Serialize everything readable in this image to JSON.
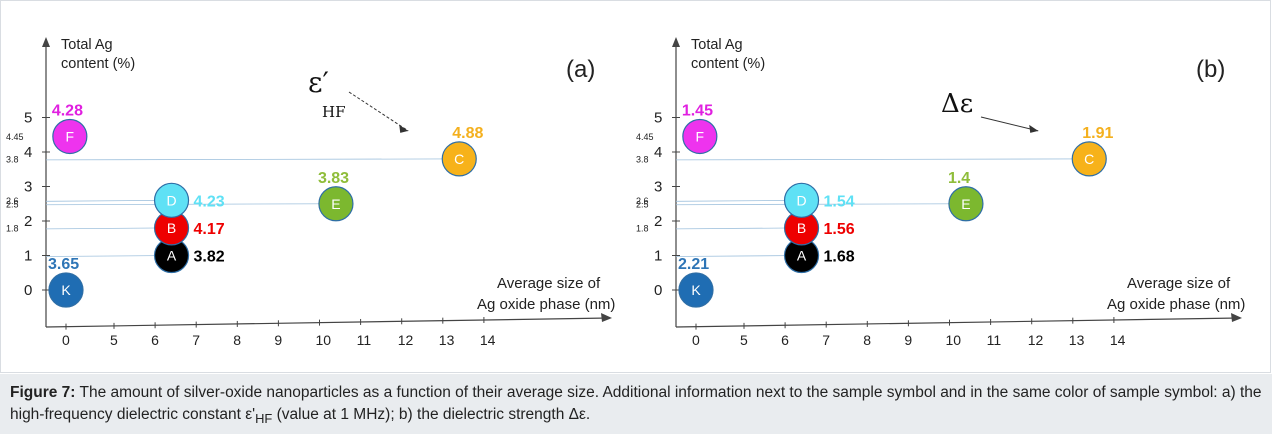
{
  "caption": {
    "label": "Figure 7:",
    "text_part1": " The amount of silver-oxide nanoparticles as a function of their average size. Additional information next to the sample symbol and in the same color of sample symbol: a) the high-frequency dielectric constant ε'",
    "text_sub": "HF",
    "text_part2": " (value at 1 MHz); b) the dielectric strength Δε."
  },
  "chart_data": [
    {
      "type": "scatter",
      "panel_label": "(a)",
      "quantity_label": "ε′",
      "quantity_subscript": "HF",
      "xlabel": [
        "Average size of",
        "Ag oxide phase (nm)"
      ],
      "ylabel": [
        "Total Ag",
        "content (%)"
      ],
      "x_ticks": [
        "0",
        "5",
        "6",
        "7",
        "8",
        "9",
        "10",
        "11",
        "12",
        "13",
        "14"
      ],
      "y_ticks": [
        "0",
        "1",
        "2",
        "3",
        "4",
        "5"
      ],
      "y_minor_ticks": [
        "1.8",
        "2.5",
        "2.6",
        "3.8",
        "4.45"
      ],
      "points": [
        {
          "sample": "K",
          "x": 0,
          "y": 0,
          "value": "3.65",
          "color": "#1f6db3",
          "value_color": "#2e75b6"
        },
        {
          "sample": "A",
          "x": 6.4,
          "y": 1,
          "value": "3.82",
          "color": "#000000",
          "value_color": "#000000"
        },
        {
          "sample": "B",
          "x": 6.4,
          "y": 1.8,
          "value": "4.17",
          "color": "#ee0000",
          "value_color": "#ee0000"
        },
        {
          "sample": "D",
          "x": 6.4,
          "y": 2.6,
          "value": "4.23",
          "color": "#5fe1f5",
          "value_color": "#5fe1f5"
        },
        {
          "sample": "E",
          "x": 10.4,
          "y": 2.5,
          "value": "3.83",
          "color": "#7cb82f",
          "value_color": "#8fbd3a"
        },
        {
          "sample": "C",
          "x": 13.4,
          "y": 3.8,
          "value": "4.88",
          "color": "#f7b21a",
          "value_color": "#f4b01e"
        },
        {
          "sample": "F",
          "x": 0.4,
          "y": 4.45,
          "value": "4.28",
          "color": "#ee33ee",
          "value_color": "#e020e0"
        }
      ]
    },
    {
      "type": "scatter",
      "panel_label": "(b)",
      "quantity_label": "Δε",
      "quantity_subscript": "",
      "xlabel": [
        "Average size of",
        "Ag oxide phase (nm)"
      ],
      "ylabel": [
        "Total Ag",
        "content (%)"
      ],
      "x_ticks": [
        "0",
        "5",
        "6",
        "7",
        "8",
        "9",
        "10",
        "11",
        "12",
        "13",
        "14"
      ],
      "y_ticks": [
        "0",
        "1",
        "2",
        "3",
        "4",
        "5"
      ],
      "y_minor_ticks": [
        "1.8",
        "2.5",
        "2.6",
        "3.8",
        "4.45"
      ],
      "points": [
        {
          "sample": "K",
          "x": 0,
          "y": 0,
          "value": "2.21",
          "color": "#1f6db3",
          "value_color": "#2e75b6"
        },
        {
          "sample": "A",
          "x": 6.4,
          "y": 1,
          "value": "1.68",
          "color": "#000000",
          "value_color": "#000000"
        },
        {
          "sample": "B",
          "x": 6.4,
          "y": 1.8,
          "value": "1.56",
          "color": "#ee0000",
          "value_color": "#ee0000"
        },
        {
          "sample": "D",
          "x": 6.4,
          "y": 2.6,
          "value": "1.54",
          "color": "#5fe1f5",
          "value_color": "#5fe1f5"
        },
        {
          "sample": "E",
          "x": 10.4,
          "y": 2.5,
          "value": "1.4",
          "color": "#7cb82f",
          "value_color": "#8fbd3a"
        },
        {
          "sample": "C",
          "x": 13.4,
          "y": 3.8,
          "value": "1.91",
          "color": "#f7b21a",
          "value_color": "#f4b01e"
        },
        {
          "sample": "F",
          "x": 0.4,
          "y": 4.45,
          "value": "1.45",
          "color": "#ee33ee",
          "value_color": "#e020e0"
        }
      ]
    }
  ]
}
